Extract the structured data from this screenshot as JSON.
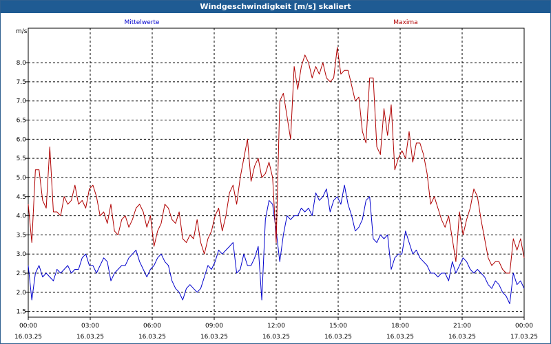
{
  "window": {
    "title": "Windgeschwindigkeit [m/s] skaliert"
  },
  "chart_data": {
    "type": "line",
    "title": "Windgeschwindigkeit [m/s] skaliert",
    "ylabel": "m/s",
    "xlabel": "",
    "ylim": [
      1.35,
      8.9
    ],
    "xlim_hours": [
      0,
      24
    ],
    "yticks": [
      1.5,
      2.0,
      2.5,
      3.0,
      3.5,
      4.0,
      4.5,
      5.0,
      5.5,
      6.0,
      6.5,
      7.0,
      7.5,
      8.0
    ],
    "ytick_labels": [
      "1.5",
      "2.0",
      "2.5",
      "3.0",
      "3.5",
      "4.0",
      "4.5",
      "5.0",
      "5.5",
      "6.0",
      "6.5",
      "7.0",
      "7.5",
      "8.0"
    ],
    "xticks": [
      {
        "time": "00:00",
        "date": "16.03.25"
      },
      {
        "time": "03:00",
        "date": "16.03.25"
      },
      {
        "time": "06:00",
        "date": "16.03.25"
      },
      {
        "time": "09:00",
        "date": "16.03.25"
      },
      {
        "time": "12:00",
        "date": "16.03.25"
      },
      {
        "time": "15:00",
        "date": "16.03.25"
      },
      {
        "time": "18:00",
        "date": "16.03.25"
      },
      {
        "time": "21:00",
        "date": "16.03.25"
      },
      {
        "time": "00:00",
        "date": "17.03.25"
      }
    ],
    "grid": true,
    "series": [
      {
        "name": "Mittelwerte",
        "color": "#0000cc",
        "values": [
          2.7,
          1.8,
          2.5,
          2.7,
          2.4,
          2.5,
          2.4,
          2.3,
          2.6,
          2.5,
          2.6,
          2.7,
          2.5,
          2.6,
          2.6,
          2.9,
          3.0,
          2.7,
          2.7,
          2.5,
          2.7,
          2.9,
          2.8,
          2.3,
          2.5,
          2.6,
          2.7,
          2.7,
          2.9,
          3.0,
          3.1,
          2.8,
          2.6,
          2.4,
          2.6,
          2.7,
          2.9,
          3.0,
          2.8,
          2.7,
          2.3,
          2.1,
          2.0,
          1.8,
          2.1,
          2.2,
          2.1,
          2.0,
          2.1,
          2.4,
          2.7,
          2.6,
          2.8,
          3.1,
          3.0,
          3.1,
          3.2,
          3.3,
          2.5,
          2.6,
          3.0,
          2.7,
          2.7,
          2.9,
          3.2,
          1.8,
          3.9,
          4.4,
          4.3,
          3.6,
          2.8,
          3.5,
          4.0,
          3.9,
          4.0,
          4.0,
          4.2,
          4.1,
          4.2,
          4.0,
          4.6,
          4.4,
          4.5,
          4.7,
          4.1,
          4.4,
          4.5,
          4.3,
          4.8,
          4.3,
          4.0,
          3.6,
          3.7,
          3.9,
          4.4,
          4.5,
          3.4,
          3.3,
          3.5,
          3.4,
          3.5,
          2.6,
          2.9,
          3.0,
          3.0,
          3.6,
          3.3,
          3.0,
          3.1,
          2.9,
          2.8,
          2.7,
          2.5,
          2.5,
          2.4,
          2.5,
          2.5,
          2.3,
          2.8,
          2.5,
          2.7,
          2.9,
          2.8,
          2.6,
          2.5,
          2.6,
          2.5,
          2.4,
          2.2,
          2.1,
          2.3,
          2.2,
          2.0,
          1.9,
          1.7,
          2.5,
          2.2,
          2.3,
          2.1
        ]
      },
      {
        "name": "Maxima",
        "color": "#b00000",
        "values": [
          4.3,
          3.3,
          5.2,
          5.2,
          4.4,
          4.2,
          5.8,
          4.1,
          4.1,
          4.0,
          4.5,
          4.3,
          4.4,
          4.8,
          4.3,
          4.4,
          4.2,
          4.7,
          4.8,
          4.5,
          4.0,
          4.1,
          3.8,
          4.3,
          3.6,
          3.5,
          3.9,
          4.0,
          3.7,
          3.9,
          4.2,
          4.3,
          4.1,
          3.7,
          4.0,
          3.2,
          3.6,
          3.8,
          4.3,
          4.2,
          3.9,
          3.8,
          4.1,
          3.4,
          3.3,
          3.5,
          3.4,
          3.9,
          3.3,
          3.0,
          3.4,
          3.6,
          4.0,
          4.2,
          3.6,
          4.0,
          4.6,
          4.8,
          4.3,
          5.0,
          5.5,
          6.0,
          4.9,
          5.3,
          5.5,
          5.0,
          5.1,
          5.4,
          5.0,
          3.3,
          7.0,
          7.2,
          6.6,
          6.0,
          7.9,
          7.3,
          7.9,
          8.2,
          8.0,
          7.6,
          7.9,
          7.7,
          8.0,
          7.6,
          7.5,
          7.6,
          8.4,
          7.7,
          7.8,
          7.8,
          7.4,
          7.0,
          7.1,
          6.2,
          5.9,
          7.6,
          7.6,
          5.8,
          5.6,
          6.8,
          6.1,
          6.9,
          5.2,
          5.5,
          5.7,
          5.5,
          6.2,
          5.4,
          5.9,
          5.9,
          5.6,
          5.1,
          4.3,
          4.5,
          4.2,
          3.9,
          3.7,
          4.0,
          3.4,
          2.8,
          4.1,
          3.5,
          3.9,
          4.2,
          4.7,
          4.5,
          3.9,
          3.4,
          2.9,
          2.7,
          2.8,
          2.8,
          2.6,
          2.5,
          2.5,
          3.4,
          3.1,
          3.4,
          2.9
        ]
      }
    ]
  }
}
